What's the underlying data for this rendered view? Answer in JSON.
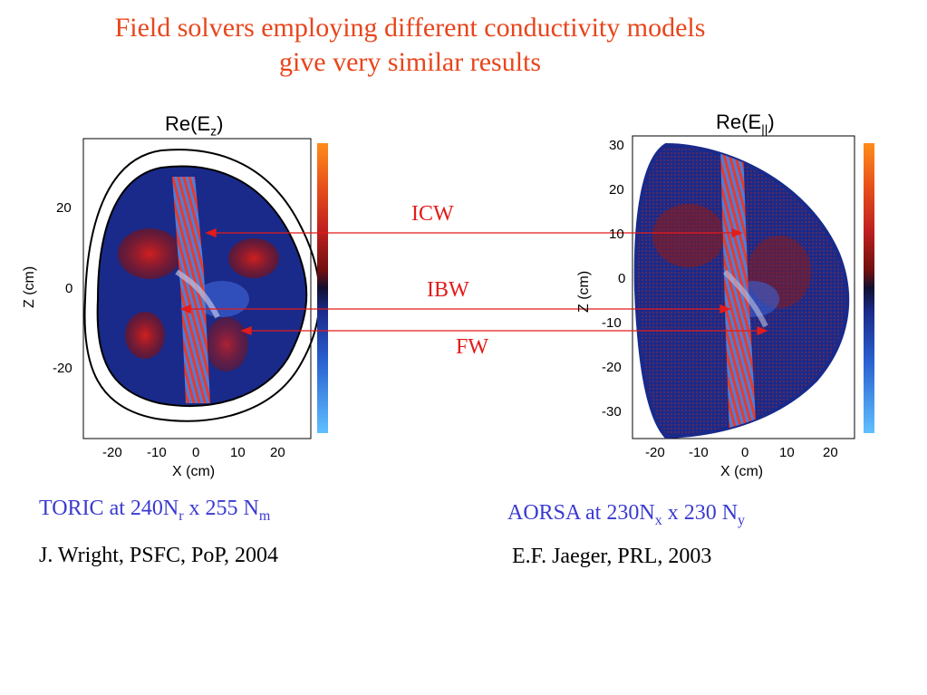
{
  "slide": {
    "title_line1": "Field solvers employing different conductivity models",
    "title_line2": "give very similar results"
  },
  "left_plot": {
    "title_main": "Re(E",
    "title_sub": "z",
    "title_end": ")",
    "xlabel": "X (cm)",
    "ylabel": "Z (cm)",
    "xticks": [
      "-20",
      "-10",
      "0",
      "10",
      "20"
    ],
    "yticks": [
      "20",
      "0",
      "-20"
    ]
  },
  "right_plot": {
    "title_main": "Re(E",
    "title_sub": "||",
    "title_end": ")",
    "xlabel": "X (cm)",
    "ylabel": "Z (cm)",
    "xticks": [
      "-20",
      "-10",
      "0",
      "10",
      "20"
    ],
    "yticks": [
      "30",
      "20",
      "10",
      "0",
      "-10",
      "-20",
      "-30"
    ]
  },
  "wave_labels": {
    "icw": "ICW",
    "ibw": "IBW",
    "fw": "FW"
  },
  "captions": {
    "left_code": "TORIC at 240N",
    "left_sub1": "r",
    "left_mid": " x 255 N",
    "left_sub2": "m",
    "left_ref": "J. Wright, PSFC, PoP, 2004",
    "right_code": "AORSA at 230N",
    "right_sub1": "x",
    "right_mid": " x 230 N",
    "right_sub2": "y",
    "right_ref": "E.F. Jaeger, PRL, 2003"
  },
  "colors": {
    "title": "#e8451c",
    "arrows": "#e21b1b",
    "caption_blue": "#3a3ad0",
    "field_background": "#1a2a8a"
  }
}
